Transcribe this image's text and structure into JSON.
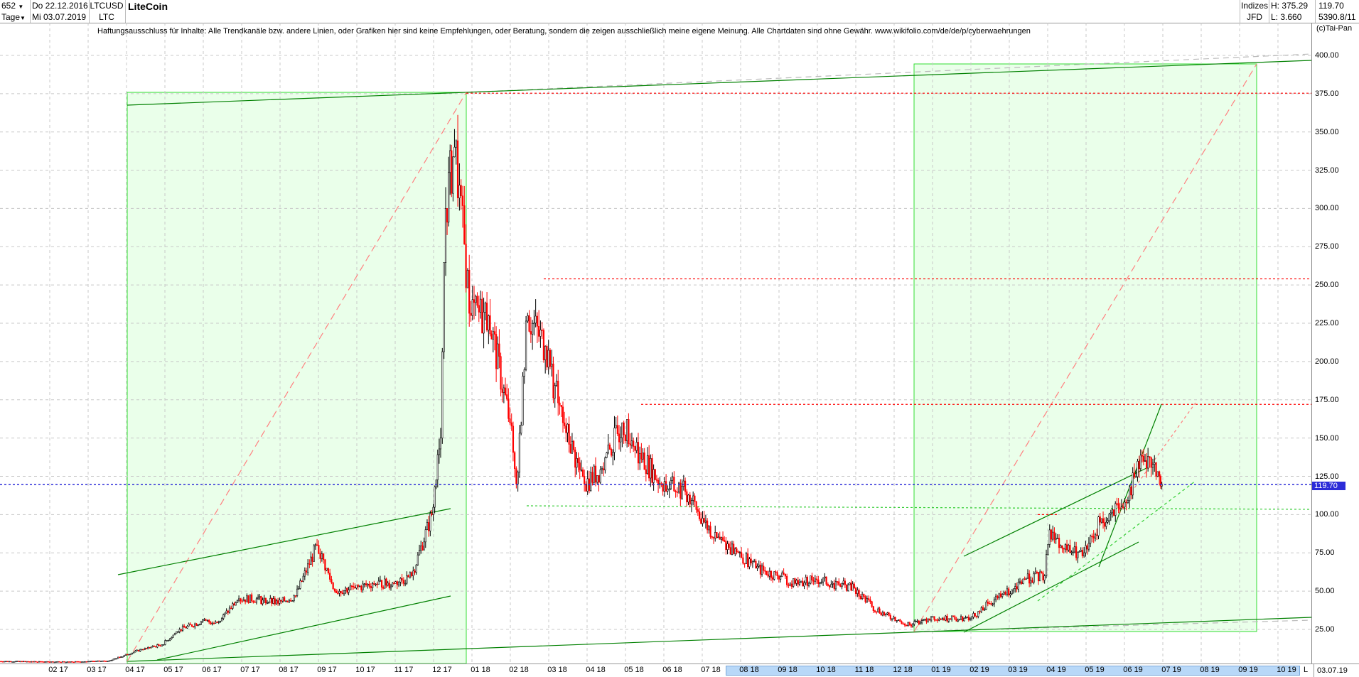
{
  "header": {
    "count": "652",
    "period": "Tage",
    "date_from": "Do 22.12.2016",
    "date_to": "Mi 03.07.2019",
    "symbol": "LTCUSD",
    "symbol_short": "LTC",
    "title": "LiteCoin",
    "exchange_group": "Indizes",
    "exchange": "JFD",
    "high": "H: 375.29",
    "low": "L: 3.660",
    "last": "119.70",
    "volume": "5390.8/11",
    "copyright": "(c)Tai-Pan"
  },
  "disclaimer": "Haftungsausschluss für Inhalte: Alle Trendkanäle bzw. andere Linien, oder Grafiken hier sind keine Empfehlungen, oder Beratung, sondern die zeigen ausschließlich meine eigene Meinung. Alle Chartdaten sind ohne Gewähr.  www.wikifolio.com/de/de/p/cyberwaehrungen",
  "footer": {
    "scale_mode": "L",
    "current_date": "03.07.19"
  },
  "colors": {
    "up": "#000000",
    "down": "#ff0000",
    "box_fill": "#eaffea",
    "box_border": "#33dd33",
    "trend": "#008000",
    "last_price": "#2c2cd8",
    "resistance": "#ff0000"
  },
  "chart_data": {
    "type": "candlestick",
    "title": "LiteCoin",
    "ylim": [
      0,
      410
    ],
    "y_ticks": [
      "25.00",
      "50.00",
      "75.00",
      "100.00",
      "125.00",
      "150.00",
      "175.00",
      "200.00",
      "225.00",
      "250.00",
      "275.00",
      "300.00",
      "325.00",
      "350.00",
      "375.00",
      "400.00"
    ],
    "x_ticks": [
      "02 17",
      "03 17",
      "04 17",
      "05 17",
      "06 17",
      "07 17",
      "08 17",
      "09 17",
      "10 17",
      "11 17",
      "12 17",
      "01 18",
      "02 18",
      "03 18",
      "04 18",
      "05 18",
      "06 18",
      "07 18",
      "08 18",
      "09 18",
      "10 18",
      "11 18",
      "12 18",
      "01 19",
      "02 19",
      "03 19",
      "04 19",
      "05 19",
      "06 19",
      "07 19",
      "08 19",
      "09 19",
      "10 19"
    ],
    "grid": true,
    "last_price": 119.7,
    "resistance_levels": [
      375.29,
      254,
      172
    ],
    "series": {
      "dates": [
        "2016-12-22",
        "2017-01-15",
        "2017-02-01",
        "2017-02-15",
        "2017-03-01",
        "2017-03-20",
        "2017-04-01",
        "2017-04-15",
        "2017-05-01",
        "2017-05-15",
        "2017-06-01",
        "2017-06-15",
        "2017-07-01",
        "2017-07-15",
        "2017-08-01",
        "2017-08-15",
        "2017-09-01",
        "2017-09-15",
        "2017-10-01",
        "2017-10-15",
        "2017-11-01",
        "2017-11-15",
        "2017-12-01",
        "2017-12-08",
        "2017-12-12",
        "2017-12-19",
        "2018-01-01",
        "2018-01-15",
        "2018-02-01",
        "2018-02-06",
        "2018-02-15",
        "2018-03-01",
        "2018-03-15",
        "2018-04-01",
        "2018-04-15",
        "2018-05-01",
        "2018-05-15",
        "2018-06-01",
        "2018-06-20",
        "2018-07-05",
        "2018-07-15",
        "2018-08-01",
        "2018-08-15",
        "2018-09-01",
        "2018-09-15",
        "2018-10-01",
        "2018-10-15",
        "2018-11-01",
        "2018-11-15",
        "2018-12-01",
        "2018-12-15",
        "2019-01-01",
        "2019-01-15",
        "2019-02-01",
        "2019-02-15",
        "2019-03-01",
        "2019-03-15",
        "2019-04-01",
        "2019-04-05",
        "2019-04-15",
        "2019-05-01",
        "2019-05-15",
        "2019-06-01",
        "2019-06-15",
        "2019-06-22",
        "2019-07-01",
        "2019-07-03"
      ],
      "close": [
        4.2,
        4.0,
        3.8,
        3.9,
        4.0,
        4.5,
        8,
        12,
        15,
        25,
        30,
        30,
        45,
        45,
        42,
        47,
        80,
        50,
        52,
        55,
        55,
        60,
        100,
        150,
        300,
        340,
        230,
        230,
        160,
        120,
        230,
        210,
        160,
        120,
        130,
        160,
        140,
        120,
        115,
        95,
        85,
        75,
        65,
        60,
        55,
        58,
        55,
        52,
        40,
        32,
        28,
        33,
        32,
        32,
        42,
        48,
        58,
        60,
        90,
        78,
        73,
        95,
        105,
        130,
        138,
        125,
        119.7
      ]
    }
  }
}
